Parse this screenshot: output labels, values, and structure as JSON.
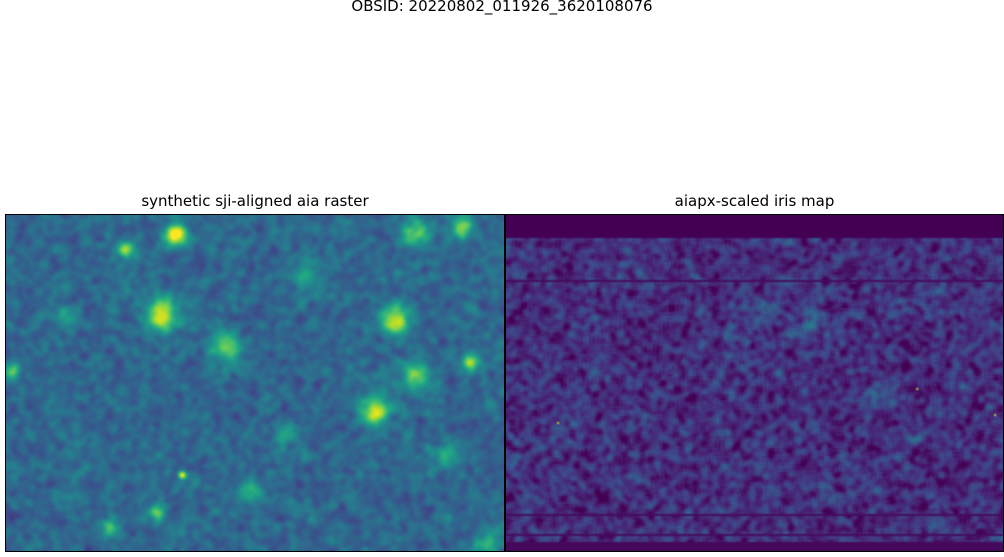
{
  "figure": {
    "suptitle": "OBSID: 20220802_011926_3620108076"
  },
  "chart_data": [
    {
      "type": "heatmap",
      "title": "synthetic sji-aligned aia raster",
      "colormap": "viridis",
      "axes_visible": false
    },
    {
      "type": "heatmap",
      "title": "aiapx-scaled iris map",
      "colormap": "viridis",
      "axes_visible": false
    }
  ]
}
